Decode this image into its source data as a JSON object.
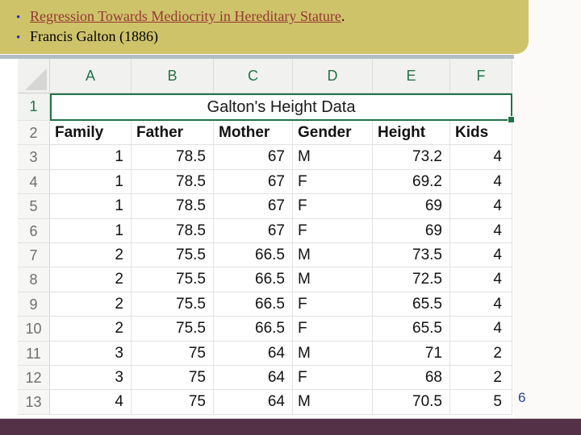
{
  "header": {
    "bullet_glyph": "•",
    "line1": {
      "link_text": "Regression Towards Mediocrity in Hereditary Stature",
      "suffix": "."
    },
    "line2": {
      "text": "Francis Galton (1886)"
    }
  },
  "page_number": "6",
  "spreadsheet": {
    "column_letters": [
      "A",
      "B",
      "C",
      "D",
      "E",
      "F"
    ],
    "title_row": {
      "number": "1",
      "title": "Galton's Height Data"
    },
    "header_row": {
      "number": "2",
      "cells": [
        "Family",
        "Father",
        "Mother",
        "Gender",
        "Height",
        "Kids"
      ]
    },
    "data_rows": [
      {
        "number": "3",
        "cells": [
          "1",
          "78.5",
          "67",
          "M",
          "73.2",
          "4"
        ]
      },
      {
        "number": "4",
        "cells": [
          "1",
          "78.5",
          "67",
          "F",
          "69.2",
          "4"
        ]
      },
      {
        "number": "5",
        "cells": [
          "1",
          "78.5",
          "67",
          "F",
          "69",
          "4"
        ]
      },
      {
        "number": "6",
        "cells": [
          "1",
          "78.5",
          "67",
          "F",
          "69",
          "4"
        ]
      },
      {
        "number": "7",
        "cells": [
          "2",
          "75.5",
          "66.5",
          "M",
          "73.5",
          "4"
        ]
      },
      {
        "number": "8",
        "cells": [
          "2",
          "75.5",
          "66.5",
          "M",
          "72.5",
          "4"
        ]
      },
      {
        "number": "9",
        "cells": [
          "2",
          "75.5",
          "66.5",
          "F",
          "65.5",
          "4"
        ]
      },
      {
        "number": "10",
        "cells": [
          "2",
          "75.5",
          "66.5",
          "F",
          "65.5",
          "4"
        ]
      },
      {
        "number": "11",
        "cells": [
          "3",
          "75",
          "64",
          "M",
          "71",
          "2"
        ]
      },
      {
        "number": "12",
        "cells": [
          "3",
          "75",
          "64",
          "F",
          "68",
          "2"
        ]
      },
      {
        "number": "13",
        "cells": [
          "4",
          "75",
          "64",
          "M",
          "70.5",
          "5"
        ]
      }
    ]
  },
  "colors": {
    "banner_bg": "#cec369",
    "link": "#953735",
    "bullet": "#2929c8",
    "excel_green": "#217346",
    "accent_bar": "#553147",
    "page_number": "#26438f",
    "sheet_top_strip": "#b2bec5"
  }
}
